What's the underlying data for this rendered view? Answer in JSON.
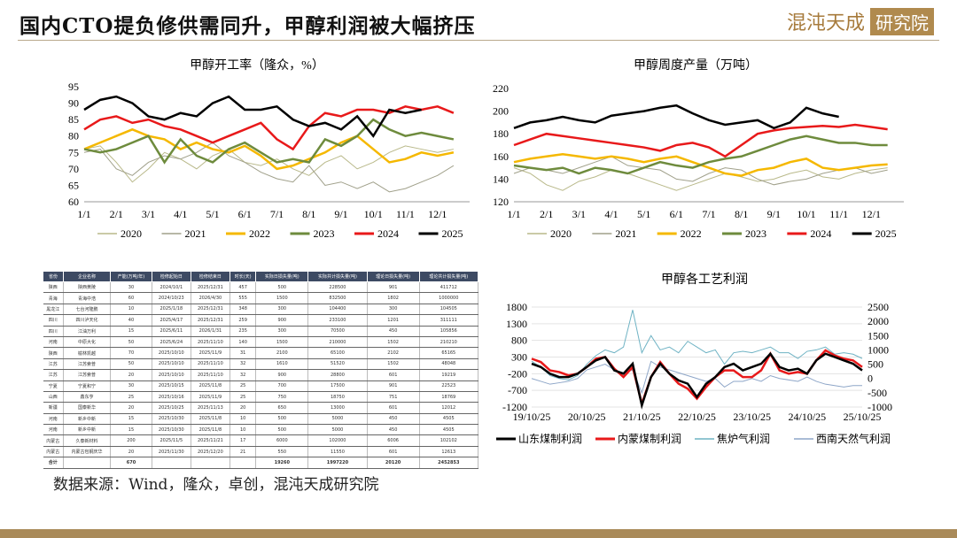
{
  "header": {
    "title": "国内CTO提负修供需同升，甲醇利润被大幅挤压",
    "logo_text": "混沌天成",
    "logo_box": "研究院"
  },
  "source": "数据来源：Wind，隆众，卓创，混沌天成研究院",
  "table": {
    "headers": [
      "省份",
      "企业名称",
      "产能(万吨/年)",
      "检修起始日",
      "检修结束日",
      "时长(天)",
      "实际日损失量(吨)",
      "实际共计损失量(吨)",
      "理论日损失量(吨)",
      "理论共计损失量(吨)"
    ],
    "rows": [
      [
        "陕西",
        "陕西黄陵",
        "30",
        "2024/10/1",
        "2025/12/31",
        "457",
        "500",
        "228500",
        "901",
        "411712"
      ],
      [
        "青海",
        "青海中浩",
        "60",
        "2024/10/23",
        "2026/4/30",
        "555",
        "1500",
        "832500",
        "1802",
        "1000000"
      ],
      [
        "黑龙江",
        "七台河隆鹏",
        "10",
        "2025/1/18",
        "2025/12/31",
        "348",
        "300",
        "104400",
        "300",
        "104505"
      ],
      [
        "四川",
        "四川泸天化",
        "40",
        "2025/4/17",
        "2025/12/31",
        "259",
        "900",
        "233100",
        "1201",
        "311111"
      ],
      [
        "四川",
        "江油万利",
        "15",
        "2025/6/11",
        "2026/1/31",
        "235",
        "300",
        "70500",
        "450",
        "105856"
      ],
      [
        "河南",
        "中原大化",
        "50",
        "2025/6/24",
        "2025/11/10",
        "140",
        "1500",
        "210000",
        "1502",
        "210210"
      ],
      [
        "陕西",
        "榆林凯越",
        "70",
        "2025/10/10",
        "2025/11/9",
        "31",
        "2100",
        "65100",
        "2102",
        "65165"
      ],
      [
        "江苏",
        "江苏索普",
        "50",
        "2025/10/10",
        "2025/11/10",
        "32",
        "1610",
        "51520",
        "1502",
        "48048"
      ],
      [
        "江苏",
        "江苏索普",
        "20",
        "2025/10/10",
        "2025/11/10",
        "32",
        "900",
        "28800",
        "601",
        "19219"
      ],
      [
        "宁夏",
        "宁夏和宁",
        "30",
        "2025/10/15",
        "2025/11/8",
        "25",
        "700",
        "17500",
        "901",
        "22523"
      ],
      [
        "山西",
        "鑫东亨",
        "25",
        "2025/10/16",
        "2025/11/9",
        "25",
        "750",
        "18750",
        "751",
        "18769"
      ],
      [
        "新疆",
        "国泰新华",
        "20",
        "2025/10/25",
        "2025/11/13",
        "20",
        "650",
        "13000",
        "601",
        "12012"
      ],
      [
        "河南",
        "新乡中新",
        "15",
        "2025/10/30",
        "2025/11/8",
        "10",
        "500",
        "5000",
        "450",
        "4505"
      ],
      [
        "河南",
        "新乡中新",
        "15",
        "2025/10/30",
        "2025/11/8",
        "10",
        "500",
        "5000",
        "450",
        "4505"
      ],
      [
        "内蒙古",
        "久泰新材料",
        "200",
        "2025/11/5",
        "2025/11/21",
        "17",
        "6000",
        "102000",
        "6006",
        "102102"
      ],
      [
        "内蒙古",
        "内蒙古包钢庆华",
        "20",
        "2025/11/30",
        "2025/12/20",
        "21",
        "550",
        "11550",
        "601",
        "12613"
      ],
      [
        "合计",
        "",
        "670",
        "",
        "",
        "",
        "19260",
        "1997220",
        "20120",
        "2452853"
      ]
    ]
  },
  "chart_data": [
    {
      "type": "line",
      "title": "甲醇开工率（隆众，%）",
      "xlabel": "",
      "ylabel": "",
      "ylim": [
        60,
        95
      ],
      "yticks": [
        60,
        65,
        70,
        75,
        80,
        85,
        90,
        95
      ],
      "xticks": [
        "1/1",
        "2/1",
        "3/1",
        "4/1",
        "5/1",
        "6/1",
        "7/1",
        "8/1",
        "9/1",
        "10/1",
        "11/1",
        "12/1"
      ],
      "points_per_year": 24,
      "legend": "bottom",
      "series": [
        {
          "name": "2020",
          "color": "#b9b98a",
          "width": 1,
          "values": [
            76,
            77,
            72,
            66,
            70,
            75,
            73,
            70,
            74,
            76,
            72,
            71,
            73,
            70,
            68,
            72,
            74,
            70,
            72,
            75,
            77,
            76,
            75,
            76
          ]
        },
        {
          "name": "2021",
          "color": "#a0a08a",
          "width": 1,
          "values": [
            75,
            76,
            70,
            68,
            72,
            74,
            73,
            75,
            78,
            74,
            72,
            69,
            67,
            66,
            71,
            65,
            66,
            64,
            66,
            63,
            64,
            66,
            68,
            71
          ]
        },
        {
          "name": "2022",
          "color": "#f5b800",
          "width": 2.5,
          "values": [
            76,
            78,
            80,
            82,
            80,
            79,
            76,
            78,
            76,
            75,
            77,
            74,
            70,
            71,
            73,
            75,
            78,
            80,
            76,
            72,
            73,
            75,
            74,
            75
          ]
        },
        {
          "name": "2023",
          "color": "#6e8b3d",
          "width": 2.5,
          "values": [
            76,
            75,
            76,
            78,
            80,
            72,
            79,
            74,
            72,
            76,
            78,
            75,
            72,
            73,
            72,
            79,
            77,
            80,
            85,
            82,
            80,
            81,
            80,
            79
          ]
        },
        {
          "name": "2024",
          "color": "#e8191a",
          "width": 2.5,
          "values": [
            82,
            85,
            86,
            84,
            85,
            83,
            82,
            80,
            78,
            80,
            82,
            84,
            79,
            76,
            83,
            87,
            86,
            88,
            88,
            87,
            89,
            88,
            89,
            87
          ]
        },
        {
          "name": "2025",
          "color": "#000000",
          "width": 2.5,
          "values": [
            88,
            91,
            92,
            90,
            86,
            85,
            87,
            86,
            90,
            92,
            88,
            88,
            89,
            85,
            83,
            84,
            82,
            86,
            80,
            88,
            87,
            88
          ]
        }
      ]
    },
    {
      "type": "line",
      "title": "甲醇周度产量（万吨）",
      "xlabel": "",
      "ylabel": "",
      "ylim": [
        120,
        220
      ],
      "yticks": [
        120,
        140,
        160,
        180,
        200,
        220
      ],
      "xticks": [
        "1/1",
        "2/1",
        "3/1",
        "4/1",
        "5/1",
        "6/1",
        "7/1",
        "8/1",
        "9/1",
        "10/1",
        "11/1",
        "12/1"
      ],
      "points_per_year": 24,
      "legend": "bottom",
      "series": [
        {
          "name": "2020",
          "color": "#b9b98a",
          "width": 1,
          "values": [
            150,
            145,
            135,
            130,
            138,
            142,
            148,
            145,
            140,
            135,
            130,
            135,
            140,
            145,
            142,
            138,
            140,
            145,
            148,
            142,
            140,
            145,
            148,
            150
          ]
        },
        {
          "name": "2021",
          "color": "#a0a08a",
          "width": 1,
          "values": [
            145,
            150,
            148,
            145,
            150,
            155,
            160,
            152,
            150,
            148,
            140,
            138,
            145,
            150,
            148,
            140,
            135,
            138,
            140,
            145,
            148,
            150,
            145,
            148
          ]
        },
        {
          "name": "2022",
          "color": "#f5b800",
          "width": 2.5,
          "values": [
            155,
            158,
            160,
            162,
            160,
            158,
            160,
            158,
            155,
            158,
            160,
            155,
            150,
            145,
            143,
            148,
            150,
            155,
            158,
            150,
            148,
            150,
            152,
            153
          ]
        },
        {
          "name": "2023",
          "color": "#6e8b3d",
          "width": 2.5,
          "values": [
            152,
            150,
            148,
            150,
            145,
            150,
            148,
            145,
            150,
            155,
            152,
            150,
            155,
            158,
            160,
            165,
            170,
            175,
            178,
            175,
            172,
            172,
            170,
            170
          ]
        },
        {
          "name": "2024",
          "color": "#e8191a",
          "width": 2.5,
          "values": [
            170,
            175,
            180,
            178,
            176,
            174,
            172,
            170,
            168,
            165,
            170,
            172,
            168,
            160,
            170,
            180,
            183,
            185,
            186,
            187,
            186,
            188,
            186,
            184
          ]
        },
        {
          "name": "2025",
          "color": "#000000",
          "width": 2.5,
          "values": [
            185,
            190,
            192,
            195,
            192,
            190,
            196,
            198,
            200,
            203,
            205,
            198,
            192,
            188,
            190,
            192,
            185,
            190,
            203,
            198,
            195
          ]
        }
      ]
    },
    {
      "type": "line",
      "title": "甲醇各工艺利润",
      "ylim": [
        -1200,
        1800
      ],
      "yticks": [
        -1200,
        -700,
        -200,
        300,
        800,
        1300,
        1800
      ],
      "y2lim": [
        -1000,
        2500
      ],
      "y2ticks": [
        -1000,
        -500,
        0,
        500,
        1000,
        1500,
        2000,
        2500
      ],
      "xticks": [
        "19/10/25",
        "20/10/25",
        "21/10/25",
        "22/10/25",
        "23/10/25",
        "24/10/25",
        "25/10/25"
      ],
      "legend": "bottom",
      "series": [
        {
          "name": "焦炉气利润",
          "axis": "right",
          "color": "#6fb3c4",
          "width": 1,
          "values": [
            600,
            400,
            100,
            0,
            -50,
            100,
            500,
            800,
            1000,
            900,
            1100,
            2400,
            900,
            1500,
            1000,
            1100,
            900,
            1300,
            1100,
            900,
            1000,
            500,
            900,
            950,
            900,
            1000,
            1100,
            900,
            900,
            700,
            950,
            1000,
            1100,
            850,
            900,
            850,
            700
          ]
        },
        {
          "name": "西南天然气利润",
          "axis": "right",
          "color": "#8ea6c8",
          "width": 1,
          "values": [
            0,
            -100,
            -200,
            -150,
            -100,
            0,
            300,
            400,
            500,
            300,
            200,
            300,
            -500,
            600,
            400,
            300,
            200,
            100,
            0,
            -100,
            0,
            -300,
            -100,
            -100,
            0,
            -100,
            100,
            0,
            -50,
            -100,
            50,
            -100,
            -200,
            -250,
            -300,
            -250,
            -250
          ]
        },
        {
          "name": "内蒙煤制利润",
          "axis": "left",
          "color": "#e8191a",
          "width": 2.5,
          "values": [
            250,
            150,
            -100,
            -150,
            -250,
            -200,
            0,
            250,
            300,
            -50,
            -300,
            0,
            -1100,
            -300,
            150,
            -200,
            -500,
            -650,
            -950,
            -600,
            -300,
            -100,
            -100,
            -300,
            -300,
            -100,
            400,
            -100,
            -200,
            -150,
            -200,
            200,
            500,
            350,
            250,
            200,
            0
          ]
        },
        {
          "name": "山东煤制利润",
          "axis": "left",
          "color": "#000000",
          "width": 2.5,
          "values": [
            100,
            0,
            -200,
            -300,
            -300,
            -200,
            0,
            200,
            300,
            -100,
            -200,
            100,
            -1150,
            -300,
            100,
            -200,
            -400,
            -500,
            -900,
            -500,
            -300,
            0,
            100,
            -100,
            0,
            100,
            400,
            0,
            -100,
            -50,
            -200,
            200,
            400,
            300,
            200,
            100,
            -100
          ]
        }
      ]
    }
  ]
}
